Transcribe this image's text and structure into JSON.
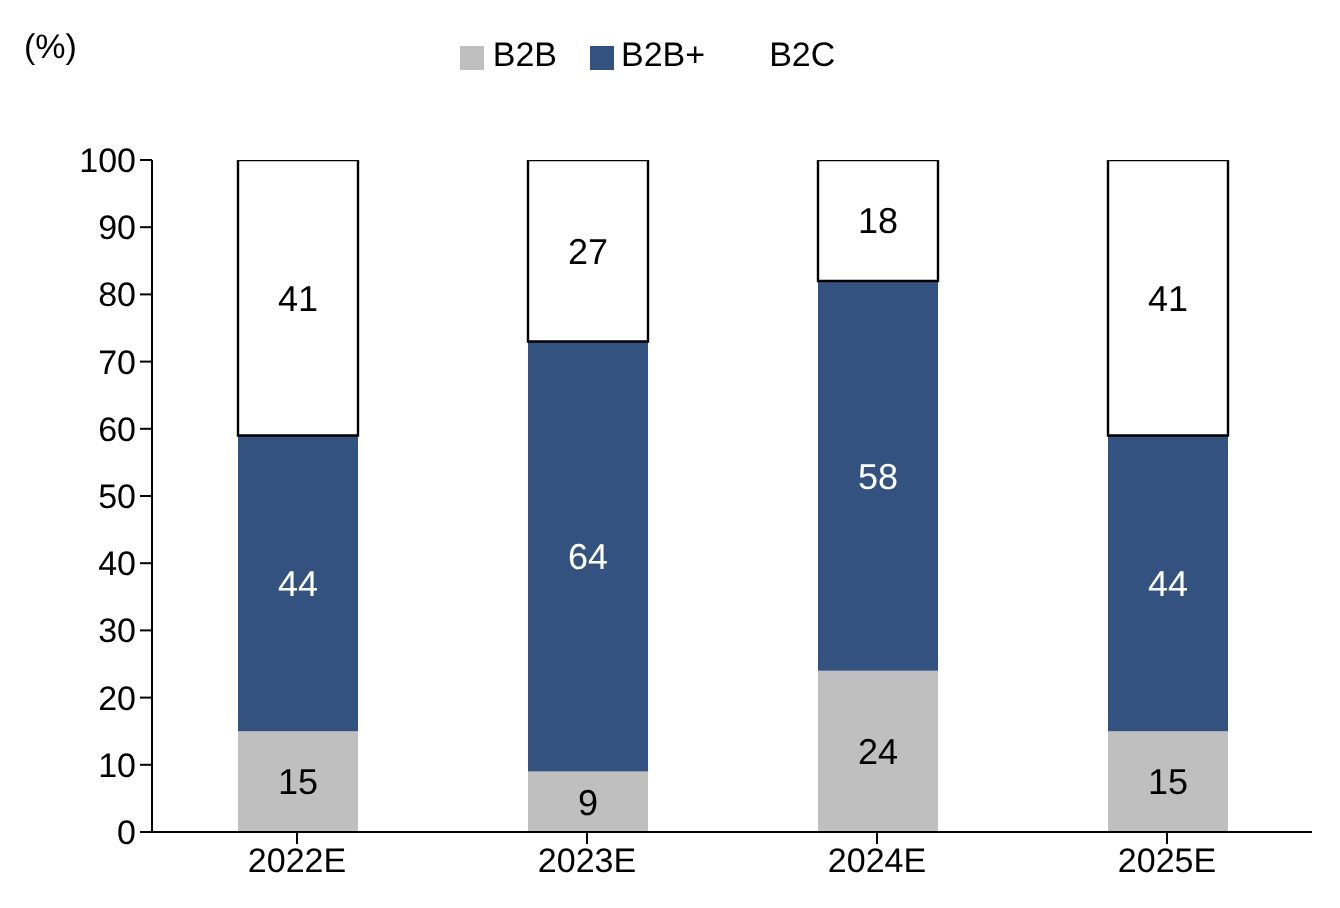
{
  "chart_data": {
    "type": "bar",
    "stacked": true,
    "ylabel": "(%)",
    "categories": [
      "2022E",
      "2023E",
      "2024E",
      "2025E"
    ],
    "series": [
      {
        "name": "B2B",
        "color": "#bfbfbf",
        "values": [
          15,
          9,
          24,
          15
        ]
      },
      {
        "name": "B2B+",
        "color": "#335280",
        "values": [
          44,
          64,
          58,
          44
        ]
      },
      {
        "name": "B2C",
        "color": "#ffffff",
        "values": [
          41,
          27,
          18,
          41
        ]
      }
    ],
    "ylim": [
      0,
      100
    ],
    "yticks": [
      0,
      10,
      20,
      30,
      40,
      50,
      60,
      70,
      80,
      90,
      100
    ],
    "grid": false,
    "legend": "top",
    "data_labels": true
  }
}
